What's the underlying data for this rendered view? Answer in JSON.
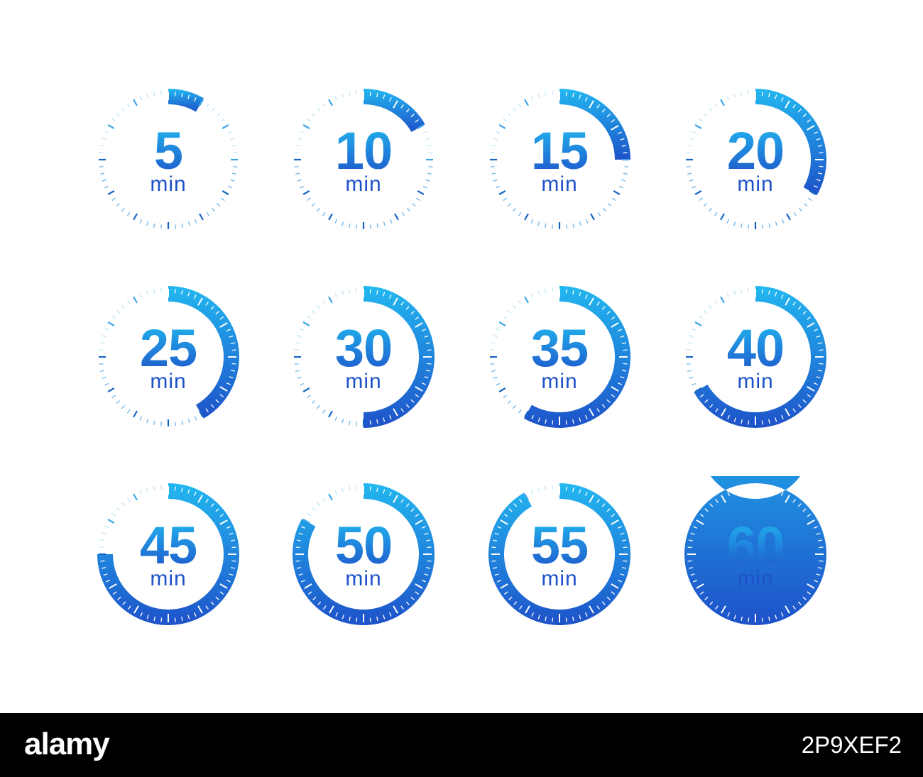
{
  "unit_label": "min",
  "colors": {
    "accent_light": "#22b8f0",
    "accent_dark": "#1e52c9",
    "tick_light": "#bfe4f8",
    "tick_dark": "#1566c8",
    "background": "#ffffff",
    "footer_bg": "#000000",
    "footer_text": "#ffffff"
  },
  "timers": [
    {
      "minutes": 5,
      "label": "5",
      "progress": 0.0833
    },
    {
      "minutes": 10,
      "label": "10",
      "progress": 0.1667
    },
    {
      "minutes": 15,
      "label": "15",
      "progress": 0.25
    },
    {
      "minutes": 20,
      "label": "20",
      "progress": 0.3333
    },
    {
      "minutes": 25,
      "label": "25",
      "progress": 0.4167
    },
    {
      "minutes": 30,
      "label": "30",
      "progress": 0.5
    },
    {
      "minutes": 35,
      "label": "35",
      "progress": 0.5833
    },
    {
      "minutes": 40,
      "label": "40",
      "progress": 0.6667
    },
    {
      "minutes": 45,
      "label": "45",
      "progress": 0.75
    },
    {
      "minutes": 50,
      "label": "50",
      "progress": 0.8333
    },
    {
      "minutes": 55,
      "label": "55",
      "progress": 0.9167
    },
    {
      "minutes": 60,
      "label": "60",
      "progress": 1.0
    }
  ],
  "footer": {
    "logo_text": "alamy",
    "image_id": "2P9XEF2"
  }
}
